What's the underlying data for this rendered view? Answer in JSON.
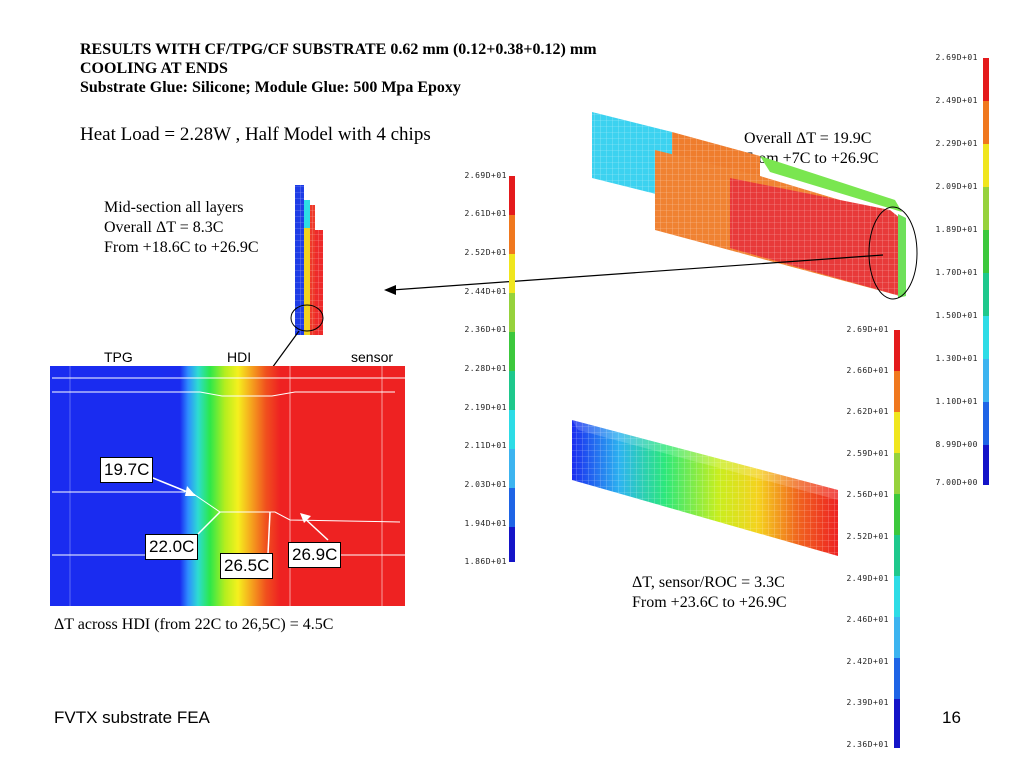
{
  "title": {
    "line1": "RESULTS WITH CF/TPG/CF SUBSTRATE 0.62 mm (0.12+0.38+0.12) mm",
    "line2": "COOLING AT ENDS",
    "line3": "Substrate Glue: Silicone;  Module Glue: 500 Mpa Epoxy"
  },
  "heat_load": "Heat Load = 2.28W , Half Model with 4 chips",
  "midsection": {
    "line1": "Mid-section all layers",
    "line2": "Overall ΔT = 8.3C",
    "line3": "From +18.6C to +26.9C"
  },
  "overall": {
    "line1": "Overall ΔT = 19.9C",
    "line2": "From +7C to +26.9C"
  },
  "sensor_roc": {
    "line1": "ΔT, sensor/ROC = 3.3C",
    "line2": "From +23.6C to +26.9C"
  },
  "hdi_note": "ΔT across HDI (from 22C to 26,5C) = 4.5C",
  "closeup": {
    "label_tpg": "TPG",
    "label_hdi": "HDI",
    "label_sensor": "sensor",
    "callouts": [
      "19.7C",
      "22.0C",
      "26.5C",
      "26.9C"
    ]
  },
  "scale_right": [
    "2.69D+01",
    "2.49D+01",
    "2.29D+01",
    "2.09D+01",
    "1.89D+01",
    "1.70D+01",
    "1.50D+01",
    "1.30D+01",
    "1.10D+01",
    "8.99D+00",
    "7.00D+00"
  ],
  "scale_mid": [
    "2.69D+01",
    "2.61D+01",
    "2.52D+01",
    "2.44D+01",
    "2.36D+01",
    "2.28D+01",
    "2.19D+01",
    "2.11D+01",
    "2.03D+01",
    "1.94D+01",
    "1.86D+01"
  ],
  "scale_lower": [
    "2.69D+01",
    "2.66D+01",
    "2.62D+01",
    "2.59D+01",
    "2.56D+01",
    "2.52D+01",
    "2.49D+01",
    "2.46D+01",
    "2.42D+01",
    "2.39D+01",
    "2.36D+01"
  ],
  "colors": {
    "palette": [
      "#e41a1c",
      "#f0781e",
      "#f5b414",
      "#f0e61e",
      "#96d23c",
      "#3cc83c",
      "#1ec88c",
      "#2ddce6",
      "#3cb4f0",
      "#1e64e6",
      "#1414c8"
    ]
  },
  "footer": {
    "left": "FVTX substrate FEA",
    "page": "16"
  }
}
